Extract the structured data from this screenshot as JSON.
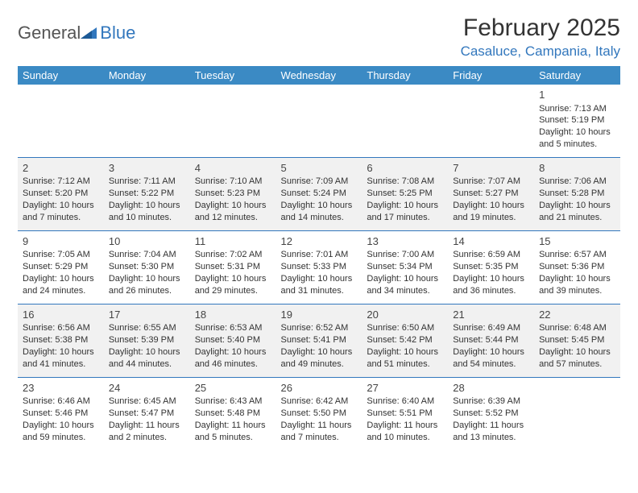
{
  "logo": {
    "general": "General",
    "blue": "Blue"
  },
  "title": "February 2025",
  "location": "Casaluce, Campania, Italy",
  "weekday_header": {
    "bg_color": "#3b8ac4",
    "text_color": "#ffffff",
    "days": [
      "Sunday",
      "Monday",
      "Tuesday",
      "Wednesday",
      "Thursday",
      "Friday",
      "Saturday"
    ]
  },
  "row_divider_color": "#3277bd",
  "alt_row_bg": "#f1f1f1",
  "weeks": [
    [
      null,
      null,
      null,
      null,
      null,
      null,
      {
        "n": "1",
        "sunrise": "Sunrise: 7:13 AM",
        "sunset": "Sunset: 5:19 PM",
        "daylight": "Daylight: 10 hours and 5 minutes."
      }
    ],
    [
      {
        "n": "2",
        "sunrise": "Sunrise: 7:12 AM",
        "sunset": "Sunset: 5:20 PM",
        "daylight": "Daylight: 10 hours and 7 minutes."
      },
      {
        "n": "3",
        "sunrise": "Sunrise: 7:11 AM",
        "sunset": "Sunset: 5:22 PM",
        "daylight": "Daylight: 10 hours and 10 minutes."
      },
      {
        "n": "4",
        "sunrise": "Sunrise: 7:10 AM",
        "sunset": "Sunset: 5:23 PM",
        "daylight": "Daylight: 10 hours and 12 minutes."
      },
      {
        "n": "5",
        "sunrise": "Sunrise: 7:09 AM",
        "sunset": "Sunset: 5:24 PM",
        "daylight": "Daylight: 10 hours and 14 minutes."
      },
      {
        "n": "6",
        "sunrise": "Sunrise: 7:08 AM",
        "sunset": "Sunset: 5:25 PM",
        "daylight": "Daylight: 10 hours and 17 minutes."
      },
      {
        "n": "7",
        "sunrise": "Sunrise: 7:07 AM",
        "sunset": "Sunset: 5:27 PM",
        "daylight": "Daylight: 10 hours and 19 minutes."
      },
      {
        "n": "8",
        "sunrise": "Sunrise: 7:06 AM",
        "sunset": "Sunset: 5:28 PM",
        "daylight": "Daylight: 10 hours and 21 minutes."
      }
    ],
    [
      {
        "n": "9",
        "sunrise": "Sunrise: 7:05 AM",
        "sunset": "Sunset: 5:29 PM",
        "daylight": "Daylight: 10 hours and 24 minutes."
      },
      {
        "n": "10",
        "sunrise": "Sunrise: 7:04 AM",
        "sunset": "Sunset: 5:30 PM",
        "daylight": "Daylight: 10 hours and 26 minutes."
      },
      {
        "n": "11",
        "sunrise": "Sunrise: 7:02 AM",
        "sunset": "Sunset: 5:31 PM",
        "daylight": "Daylight: 10 hours and 29 minutes."
      },
      {
        "n": "12",
        "sunrise": "Sunrise: 7:01 AM",
        "sunset": "Sunset: 5:33 PM",
        "daylight": "Daylight: 10 hours and 31 minutes."
      },
      {
        "n": "13",
        "sunrise": "Sunrise: 7:00 AM",
        "sunset": "Sunset: 5:34 PM",
        "daylight": "Daylight: 10 hours and 34 minutes."
      },
      {
        "n": "14",
        "sunrise": "Sunrise: 6:59 AM",
        "sunset": "Sunset: 5:35 PM",
        "daylight": "Daylight: 10 hours and 36 minutes."
      },
      {
        "n": "15",
        "sunrise": "Sunrise: 6:57 AM",
        "sunset": "Sunset: 5:36 PM",
        "daylight": "Daylight: 10 hours and 39 minutes."
      }
    ],
    [
      {
        "n": "16",
        "sunrise": "Sunrise: 6:56 AM",
        "sunset": "Sunset: 5:38 PM",
        "daylight": "Daylight: 10 hours and 41 minutes."
      },
      {
        "n": "17",
        "sunrise": "Sunrise: 6:55 AM",
        "sunset": "Sunset: 5:39 PM",
        "daylight": "Daylight: 10 hours and 44 minutes."
      },
      {
        "n": "18",
        "sunrise": "Sunrise: 6:53 AM",
        "sunset": "Sunset: 5:40 PM",
        "daylight": "Daylight: 10 hours and 46 minutes."
      },
      {
        "n": "19",
        "sunrise": "Sunrise: 6:52 AM",
        "sunset": "Sunset: 5:41 PM",
        "daylight": "Daylight: 10 hours and 49 minutes."
      },
      {
        "n": "20",
        "sunrise": "Sunrise: 6:50 AM",
        "sunset": "Sunset: 5:42 PM",
        "daylight": "Daylight: 10 hours and 51 minutes."
      },
      {
        "n": "21",
        "sunrise": "Sunrise: 6:49 AM",
        "sunset": "Sunset: 5:44 PM",
        "daylight": "Daylight: 10 hours and 54 minutes."
      },
      {
        "n": "22",
        "sunrise": "Sunrise: 6:48 AM",
        "sunset": "Sunset: 5:45 PM",
        "daylight": "Daylight: 10 hours and 57 minutes."
      }
    ],
    [
      {
        "n": "23",
        "sunrise": "Sunrise: 6:46 AM",
        "sunset": "Sunset: 5:46 PM",
        "daylight": "Daylight: 10 hours and 59 minutes."
      },
      {
        "n": "24",
        "sunrise": "Sunrise: 6:45 AM",
        "sunset": "Sunset: 5:47 PM",
        "daylight": "Daylight: 11 hours and 2 minutes."
      },
      {
        "n": "25",
        "sunrise": "Sunrise: 6:43 AM",
        "sunset": "Sunset: 5:48 PM",
        "daylight": "Daylight: 11 hours and 5 minutes."
      },
      {
        "n": "26",
        "sunrise": "Sunrise: 6:42 AM",
        "sunset": "Sunset: 5:50 PM",
        "daylight": "Daylight: 11 hours and 7 minutes."
      },
      {
        "n": "27",
        "sunrise": "Sunrise: 6:40 AM",
        "sunset": "Sunset: 5:51 PM",
        "daylight": "Daylight: 11 hours and 10 minutes."
      },
      {
        "n": "28",
        "sunrise": "Sunrise: 6:39 AM",
        "sunset": "Sunset: 5:52 PM",
        "daylight": "Daylight: 11 hours and 13 minutes."
      },
      null
    ]
  ]
}
